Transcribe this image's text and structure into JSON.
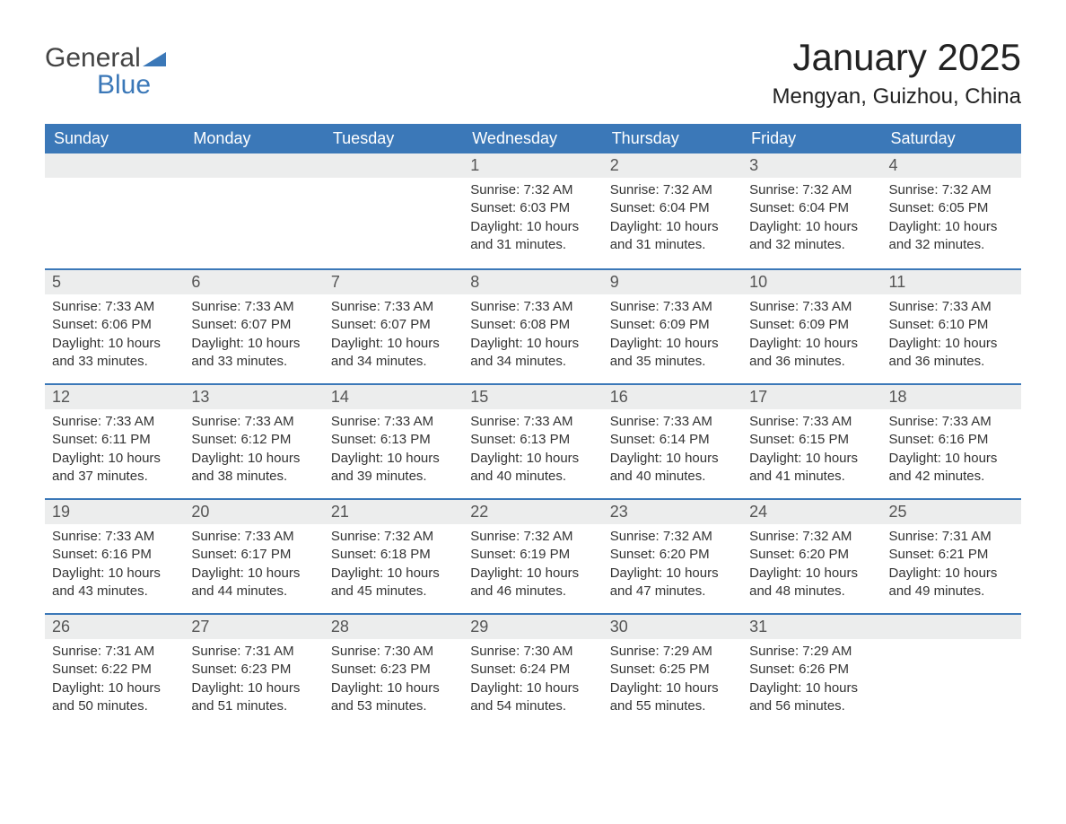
{
  "brand": {
    "word1": "General",
    "word2": "Blue"
  },
  "title": "January 2025",
  "subtitle": "Mengyan, Guizhou, China",
  "colors": {
    "header_bg": "#3b78b8",
    "header_text": "#ffffff",
    "daynum_bg": "#eceded",
    "border": "#3b78b8",
    "text": "#333333",
    "background": "#ffffff"
  },
  "day_headers": [
    "Sunday",
    "Monday",
    "Tuesday",
    "Wednesday",
    "Thursday",
    "Friday",
    "Saturday"
  ],
  "weeks": [
    [
      {
        "num": "",
        "empty": true
      },
      {
        "num": "",
        "empty": true
      },
      {
        "num": "",
        "empty": true
      },
      {
        "num": "1",
        "sunrise": "7:32 AM",
        "sunset": "6:03 PM",
        "daylight": "10 hours and 31 minutes."
      },
      {
        "num": "2",
        "sunrise": "7:32 AM",
        "sunset": "6:04 PM",
        "daylight": "10 hours and 31 minutes."
      },
      {
        "num": "3",
        "sunrise": "7:32 AM",
        "sunset": "6:04 PM",
        "daylight": "10 hours and 32 minutes."
      },
      {
        "num": "4",
        "sunrise": "7:32 AM",
        "sunset": "6:05 PM",
        "daylight": "10 hours and 32 minutes."
      }
    ],
    [
      {
        "num": "5",
        "sunrise": "7:33 AM",
        "sunset": "6:06 PM",
        "daylight": "10 hours and 33 minutes."
      },
      {
        "num": "6",
        "sunrise": "7:33 AM",
        "sunset": "6:07 PM",
        "daylight": "10 hours and 33 minutes."
      },
      {
        "num": "7",
        "sunrise": "7:33 AM",
        "sunset": "6:07 PM",
        "daylight": "10 hours and 34 minutes."
      },
      {
        "num": "8",
        "sunrise": "7:33 AM",
        "sunset": "6:08 PM",
        "daylight": "10 hours and 34 minutes."
      },
      {
        "num": "9",
        "sunrise": "7:33 AM",
        "sunset": "6:09 PM",
        "daylight": "10 hours and 35 minutes."
      },
      {
        "num": "10",
        "sunrise": "7:33 AM",
        "sunset": "6:09 PM",
        "daylight": "10 hours and 36 minutes."
      },
      {
        "num": "11",
        "sunrise": "7:33 AM",
        "sunset": "6:10 PM",
        "daylight": "10 hours and 36 minutes."
      }
    ],
    [
      {
        "num": "12",
        "sunrise": "7:33 AM",
        "sunset": "6:11 PM",
        "daylight": "10 hours and 37 minutes."
      },
      {
        "num": "13",
        "sunrise": "7:33 AM",
        "sunset": "6:12 PM",
        "daylight": "10 hours and 38 minutes."
      },
      {
        "num": "14",
        "sunrise": "7:33 AM",
        "sunset": "6:13 PM",
        "daylight": "10 hours and 39 minutes."
      },
      {
        "num": "15",
        "sunrise": "7:33 AM",
        "sunset": "6:13 PM",
        "daylight": "10 hours and 40 minutes."
      },
      {
        "num": "16",
        "sunrise": "7:33 AM",
        "sunset": "6:14 PM",
        "daylight": "10 hours and 40 minutes."
      },
      {
        "num": "17",
        "sunrise": "7:33 AM",
        "sunset": "6:15 PM",
        "daylight": "10 hours and 41 minutes."
      },
      {
        "num": "18",
        "sunrise": "7:33 AM",
        "sunset": "6:16 PM",
        "daylight": "10 hours and 42 minutes."
      }
    ],
    [
      {
        "num": "19",
        "sunrise": "7:33 AM",
        "sunset": "6:16 PM",
        "daylight": "10 hours and 43 minutes."
      },
      {
        "num": "20",
        "sunrise": "7:33 AM",
        "sunset": "6:17 PM",
        "daylight": "10 hours and 44 minutes."
      },
      {
        "num": "21",
        "sunrise": "7:32 AM",
        "sunset": "6:18 PM",
        "daylight": "10 hours and 45 minutes."
      },
      {
        "num": "22",
        "sunrise": "7:32 AM",
        "sunset": "6:19 PM",
        "daylight": "10 hours and 46 minutes."
      },
      {
        "num": "23",
        "sunrise": "7:32 AM",
        "sunset": "6:20 PM",
        "daylight": "10 hours and 47 minutes."
      },
      {
        "num": "24",
        "sunrise": "7:32 AM",
        "sunset": "6:20 PM",
        "daylight": "10 hours and 48 minutes."
      },
      {
        "num": "25",
        "sunrise": "7:31 AM",
        "sunset": "6:21 PM",
        "daylight": "10 hours and 49 minutes."
      }
    ],
    [
      {
        "num": "26",
        "sunrise": "7:31 AM",
        "sunset": "6:22 PM",
        "daylight": "10 hours and 50 minutes."
      },
      {
        "num": "27",
        "sunrise": "7:31 AM",
        "sunset": "6:23 PM",
        "daylight": "10 hours and 51 minutes."
      },
      {
        "num": "28",
        "sunrise": "7:30 AM",
        "sunset": "6:23 PM",
        "daylight": "10 hours and 53 minutes."
      },
      {
        "num": "29",
        "sunrise": "7:30 AM",
        "sunset": "6:24 PM",
        "daylight": "10 hours and 54 minutes."
      },
      {
        "num": "30",
        "sunrise": "7:29 AM",
        "sunset": "6:25 PM",
        "daylight": "10 hours and 55 minutes."
      },
      {
        "num": "31",
        "sunrise": "7:29 AM",
        "sunset": "6:26 PM",
        "daylight": "10 hours and 56 minutes."
      },
      {
        "num": "",
        "empty": true
      }
    ]
  ],
  "labels": {
    "sunrise_prefix": "Sunrise: ",
    "sunset_prefix": "Sunset: ",
    "daylight_prefix": "Daylight: "
  }
}
